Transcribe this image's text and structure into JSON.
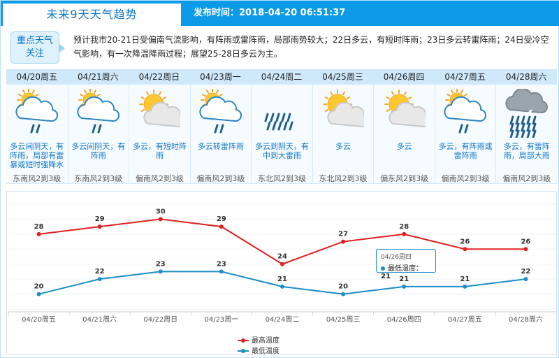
{
  "header": {
    "title": "未来9天天气趋势",
    "publish_time": "发布时间：2018-04-20 06:51:37"
  },
  "alert": {
    "badge_line1": "重点天气",
    "badge_line2": "关注",
    "text": "预计我市20-21日受偏南气流影响，有阵雨或雷阵雨，局部雨势较大；22日多云，有短时阵雨；23日多云转雷阵雨；24日受冷空气影响，有一次降温降雨过程；展望25-28日多云为主。"
  },
  "days": [
    {
      "date": "04/20周五",
      "icon": "sun-cloud-rain-icon",
      "desc": "多云间阴天，有阵雨，局部有雷暴或短时强降水",
      "wind": "东南风2到3级"
    },
    {
      "date": "04/21周六",
      "icon": "sun-cloud-rain-icon",
      "desc": "多云间阴天，有阵雨",
      "wind": "东南风2到3级"
    },
    {
      "date": "04/22周日",
      "icon": "sun-cloud-icon",
      "desc": "多云，有短时阵雨",
      "wind": "偏南风2到3级"
    },
    {
      "date": "04/23周一",
      "icon": "sun-cloud-rain-icon",
      "desc": "多云转雷阵雨",
      "wind": "偏南风2到3级"
    },
    {
      "date": "04/24周二",
      "icon": "rain-icon",
      "desc": "多云到阴天，有中到大雷雨",
      "wind": "东北风2到3级"
    },
    {
      "date": "04/25周三",
      "icon": "sun-cloud-icon",
      "desc": "多云",
      "wind": "东北风2到3级"
    },
    {
      "date": "04/26周四",
      "icon": "sun-cloud-icon",
      "desc": "多云",
      "wind": "偏东风2到3级"
    },
    {
      "date": "04/27周五",
      "icon": "sun-cloud-rain-icon",
      "desc": "多云，有阵雨或雷阵雨",
      "wind": "偏南风2到3级"
    },
    {
      "date": "04/28周六",
      "icon": "thunder-rain-icon",
      "desc": "多云，有雷阵雨，局部大雨",
      "wind": "偏南风2到3级"
    }
  ],
  "colors": {
    "header_bg": "#0b9ae6",
    "high_line": "#e02020",
    "low_line": "#1b8fc6",
    "desc_text": "#0b76c8"
  },
  "tooltip": {
    "date": "04/26周四",
    "label": "最低温度",
    "value": "21"
  },
  "chart_data": {
    "type": "line",
    "categories": [
      "04/20周五",
      "04/21周六",
      "04/22周日",
      "04/23周一",
      "04/24周二",
      "04/25周三",
      "04/26周四",
      "04/27周五",
      "04/28周六"
    ],
    "series": [
      {
        "name": "最高温度",
        "values": [
          28,
          29,
          30,
          29,
          24,
          27,
          28,
          26,
          26
        ],
        "color": "#e02020"
      },
      {
        "name": "最低温度",
        "values": [
          20,
          22,
          23,
          23,
          21,
          20,
          21,
          21,
          22
        ],
        "color": "#1b8fc6"
      }
    ],
    "ylim": [
      18,
      32
    ],
    "grid": "horizontal",
    "legend": "bottom-center"
  }
}
